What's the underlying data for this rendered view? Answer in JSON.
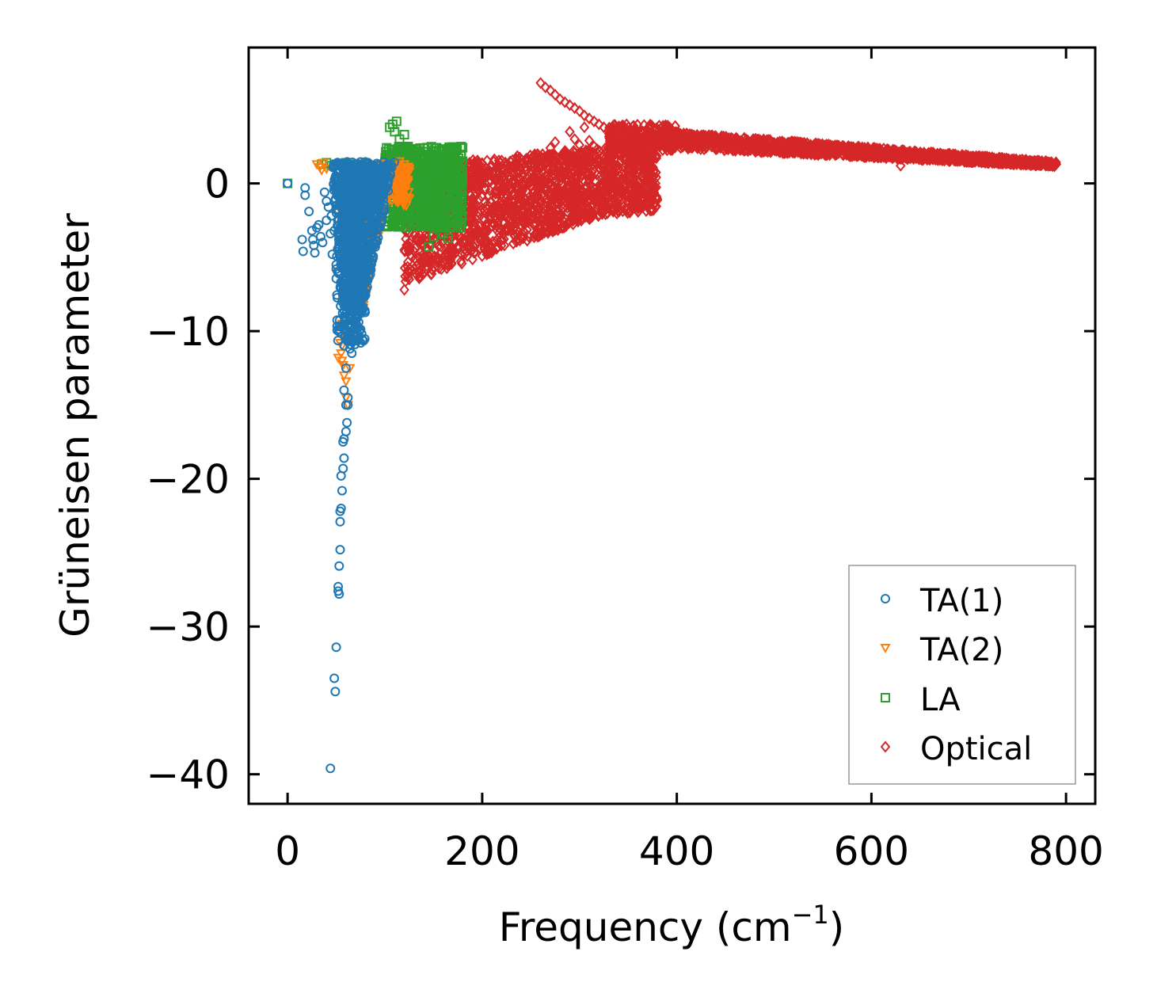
{
  "chart_data": {
    "type": "scatter",
    "title": "",
    "xlabel": "Frequency (cm",
    "xlabel_sup": "−1",
    "xlabel_end": ")",
    "ylabel": "Grüneisen parameter",
    "xlim": [
      -40,
      830
    ],
    "ylim": [
      -42,
      9.2
    ],
    "x_ticks": [
      0,
      200,
      400,
      600,
      800
    ],
    "x_tick_labels": [
      "0",
      "200",
      "400",
      "600",
      "800"
    ],
    "y_ticks": [
      0,
      -10,
      -20,
      -30,
      -40
    ],
    "y_tick_labels": [
      "0",
      "−10",
      "−20",
      "−30",
      "−40"
    ],
    "grid": false,
    "legend_position": "lower-right",
    "series": [
      {
        "name": "TA(1)",
        "marker": "circle",
        "color": "#1f77b4",
        "points": [
          [
            0,
            0
          ],
          [
            15,
            -3.8
          ],
          [
            16,
            -4.6
          ],
          [
            18,
            -0.3
          ],
          [
            18,
            -0.8
          ],
          [
            22,
            -1.9
          ],
          [
            25,
            -3.2
          ],
          [
            26,
            -3.8
          ],
          [
            27,
            -4.2
          ],
          [
            28,
            -4.7
          ],
          [
            30,
            -3.0
          ],
          [
            32,
            -2.8
          ],
          [
            34,
            -3.6
          ],
          [
            36,
            -4.0
          ],
          [
            38,
            -0.6
          ],
          [
            40,
            -1.2
          ],
          [
            40,
            -2.5
          ],
          [
            42,
            -1.6
          ],
          [
            44,
            -3.4
          ],
          [
            45,
            -2.2
          ],
          [
            46,
            -4.8
          ],
          [
            48,
            -3.2
          ],
          [
            50,
            -5.5
          ],
          [
            50,
            -5.8
          ],
          [
            52,
            -4.4
          ],
          [
            52,
            -6.0
          ],
          [
            55,
            -7.0
          ],
          [
            56,
            -8.0
          ],
          [
            58,
            -9.0
          ],
          [
            60,
            -7.2
          ],
          [
            62,
            -10.0
          ],
          [
            63,
            -10.6
          ],
          [
            64,
            -11.2
          ],
          [
            65,
            -9.5
          ],
          [
            66,
            -8.3
          ],
          [
            66,
            -11.5
          ],
          [
            60,
            -12.5
          ],
          [
            58,
            -14.0
          ],
          [
            62,
            -14.5
          ],
          [
            60,
            -15.0
          ],
          [
            62,
            -15.0
          ],
          [
            61,
            -16.2
          ],
          [
            60,
            -16.8
          ],
          [
            58,
            -17.3
          ],
          [
            57,
            -17.5
          ],
          [
            58,
            -18.6
          ],
          [
            57,
            -19.3
          ],
          [
            55,
            -19.8
          ],
          [
            56,
            -20.8
          ],
          [
            55,
            -22.0
          ],
          [
            54,
            -22.2
          ],
          [
            54,
            -22.9
          ],
          [
            54,
            -24.8
          ],
          [
            53,
            -25.9
          ],
          [
            52,
            -27.3
          ],
          [
            52,
            -27.6
          ],
          [
            53,
            -27.8
          ],
          [
            50,
            -31.4
          ],
          [
            48,
            -33.5
          ],
          [
            49,
            -34.4
          ],
          [
            44,
            -39.6
          ]
        ],
        "clusters": [
          {
            "x": [
              45,
              110
            ],
            "y": [
              -9,
              1.5
            ],
            "count": 900,
            "shape": "funnel"
          },
          {
            "x": [
              50,
              80
            ],
            "y": [
              -11,
              -4
            ],
            "count": 180,
            "shape": "box"
          }
        ]
      },
      {
        "name": "TA(2)",
        "marker": "triangle-down",
        "color": "#ff7f0e",
        "points": [
          [
            30,
            1.3
          ],
          [
            33,
            1.1
          ],
          [
            35,
            0.9
          ],
          [
            37,
            1.4
          ],
          [
            40,
            1.0
          ],
          [
            55,
            1.2
          ],
          [
            56,
            -9.5
          ],
          [
            56,
            -11.0
          ],
          [
            55,
            -11.5
          ],
          [
            56,
            -12.0
          ],
          [
            57,
            -12.3
          ],
          [
            58,
            -13.0
          ],
          [
            60,
            -13.4
          ],
          [
            60,
            -14.5
          ],
          [
            62,
            -15.0
          ],
          [
            64,
            -12.5
          ],
          [
            58,
            -9.6
          ],
          [
            60,
            -10.5
          ],
          [
            54,
            -10.8
          ],
          [
            52,
            -11.8
          ],
          [
            57,
            -8.0
          ],
          [
            59,
            -7.0
          ],
          [
            62,
            -6.5
          ],
          [
            65,
            -6.0
          ],
          [
            70,
            -5.0
          ],
          [
            75,
            -4.2
          ],
          [
            80,
            -3.5
          ],
          [
            85,
            -2.6
          ],
          [
            90,
            -1.8
          ],
          [
            95,
            -1.0
          ],
          [
            100,
            -0.3
          ],
          [
            105,
            0.6
          ],
          [
            110,
            1.2
          ],
          [
            115,
            1.5
          ],
          [
            120,
            1.3
          ],
          [
            125,
            0.8
          ],
          [
            115,
            -1.0
          ]
        ],
        "clusters": [
          {
            "x": [
              55,
              100
            ],
            "y": [
              -9,
              -1.5
            ],
            "count": 500,
            "shape": "funnel"
          },
          {
            "x": [
              55,
              125
            ],
            "y": [
              -1.5,
              1.4
            ],
            "count": 250,
            "shape": "box"
          }
        ]
      },
      {
        "name": "LA",
        "marker": "square",
        "color": "#2ca02c",
        "points": [
          [
            0,
            0
          ],
          [
            35,
            1.3
          ],
          [
            40,
            1.4
          ],
          [
            45,
            1.2
          ],
          [
            50,
            1.3
          ],
          [
            60,
            1.4
          ],
          [
            70,
            1.3
          ],
          [
            80,
            1.4
          ],
          [
            90,
            1.2
          ],
          [
            100,
            1.4
          ],
          [
            105,
            3.8
          ],
          [
            108,
            4.0
          ],
          [
            110,
            3.5
          ],
          [
            112,
            4.2
          ],
          [
            115,
            3.0
          ],
          [
            118,
            2.5
          ],
          [
            120,
            3.3
          ],
          [
            125,
            2.0
          ],
          [
            130,
            -0.5
          ],
          [
            115,
            -2.0
          ],
          [
            145,
            -4.3
          ],
          [
            150,
            -3.6
          ],
          [
            155,
            -3.0
          ],
          [
            160,
            -2.5
          ],
          [
            165,
            -1.5
          ],
          [
            170,
            -2.0
          ],
          [
            175,
            -2.6
          ],
          [
            178,
            -3.0
          ],
          [
            140,
            2.4
          ],
          [
            150,
            2.2
          ],
          [
            160,
            -3.4
          ],
          [
            165,
            -3.7
          ],
          [
            170,
            0.5
          ],
          [
            175,
            -1.0
          ],
          [
            135,
            -1.5
          ],
          [
            145,
            -2.0
          ]
        ],
        "clusters": [
          {
            "x": [
              100,
              180
            ],
            "y": [
              -3,
              2.5
            ],
            "count": 700,
            "shape": "box"
          }
        ]
      },
      {
        "name": "Optical",
        "marker": "diamond",
        "color": "#d62728",
        "points": [
          [
            260,
            6.8
          ],
          [
            265,
            6.5
          ],
          [
            270,
            6.3
          ],
          [
            275,
            6.0
          ],
          [
            280,
            5.7
          ],
          [
            285,
            5.5
          ],
          [
            290,
            5.3
          ],
          [
            295,
            5.1
          ],
          [
            300,
            4.9
          ],
          [
            305,
            4.6
          ],
          [
            310,
            4.4
          ],
          [
            315,
            4.2
          ],
          [
            320,
            4.0
          ],
          [
            325,
            3.8
          ],
          [
            330,
            3.6
          ],
          [
            335,
            3.4
          ],
          [
            290,
            3.5
          ],
          [
            295,
            3.0
          ],
          [
            300,
            2.6
          ],
          [
            305,
            3.8
          ],
          [
            310,
            2.9
          ],
          [
            315,
            2.5
          ],
          [
            320,
            2.2
          ],
          [
            330,
            1.9
          ],
          [
            285,
            2.2
          ],
          [
            280,
            1.8
          ],
          [
            270,
            2.4
          ],
          [
            275,
            2.8
          ],
          [
            120,
            -7.2
          ],
          [
            125,
            -6.5
          ],
          [
            130,
            -5.8
          ],
          [
            135,
            -5.0
          ],
          [
            140,
            -4.2
          ],
          [
            130,
            -3.5
          ],
          [
            125,
            -4.0
          ],
          [
            120,
            -4.5
          ],
          [
            150,
            -2.8
          ],
          [
            160,
            -2.0
          ],
          [
            630,
            1.2
          ],
          [
            400,
            2.8
          ],
          [
            420,
            2.5
          ],
          [
            440,
            2.9
          ],
          [
            460,
            3.0
          ],
          [
            480,
            2.7
          ],
          [
            500,
            2.5
          ],
          [
            520,
            2.3
          ],
          [
            540,
            2.2
          ],
          [
            560,
            2.1
          ],
          [
            580,
            2.0
          ],
          [
            600,
            1.9
          ],
          [
            620,
            1.8
          ],
          [
            640,
            1.7
          ],
          [
            660,
            1.6
          ],
          [
            680,
            1.5
          ],
          [
            700,
            1.5
          ],
          [
            720,
            1.4
          ],
          [
            740,
            1.4
          ],
          [
            760,
            1.3
          ],
          [
            780,
            1.3
          ],
          [
            790,
            1.3
          ]
        ],
        "clusters": [
          {
            "x": [
              120,
              380
            ],
            "y": [
              -6.8,
              2.5
            ],
            "count": 1800,
            "shape": "optical-wedge"
          },
          {
            "x": [
              330,
              400
            ],
            "y": [
              2.2,
              4.0
            ],
            "count": 250,
            "shape": "box"
          },
          {
            "x": [
              380,
              790
            ],
            "y": [
              1.0,
              3.2
            ],
            "count": 1400,
            "shape": "tail"
          }
        ]
      }
    ]
  }
}
